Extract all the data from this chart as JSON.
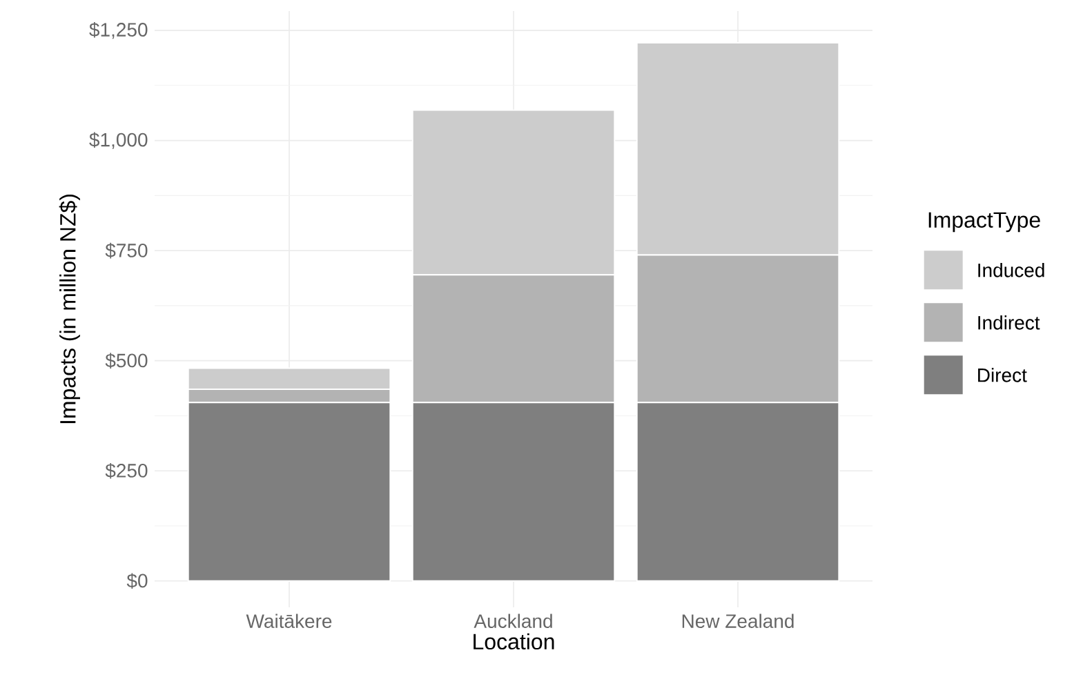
{
  "chart_data": {
    "type": "bar",
    "stacked": true,
    "xlabel": "Location",
    "ylabel": "Impacts (in million NZ$)",
    "legend_title": "ImpactType",
    "legend": "right",
    "grid": true,
    "categories": [
      "Waitākere",
      "Auckland",
      "New Zealand"
    ],
    "series": [
      {
        "name": "Direct",
        "color": "#7f7f7f",
        "values": [
          405,
          405,
          405
        ]
      },
      {
        "name": "Indirect",
        "color": "#b3b3b3",
        "values": [
          30,
          290,
          335
        ]
      },
      {
        "name": "Induced",
        "color": "#cccccc",
        "values": [
          48,
          374,
          482
        ]
      }
    ],
    "ylim": [
      -60,
      1294
    ],
    "yticks": [
      {
        "value": 0,
        "label": "$0"
      },
      {
        "value": 250,
        "label": "$250"
      },
      {
        "value": 500,
        "label": "$500"
      },
      {
        "value": 750,
        "label": "$750"
      },
      {
        "value": 1000,
        "label": "$1,000"
      },
      {
        "value": 1250,
        "label": "$1,250"
      }
    ]
  }
}
